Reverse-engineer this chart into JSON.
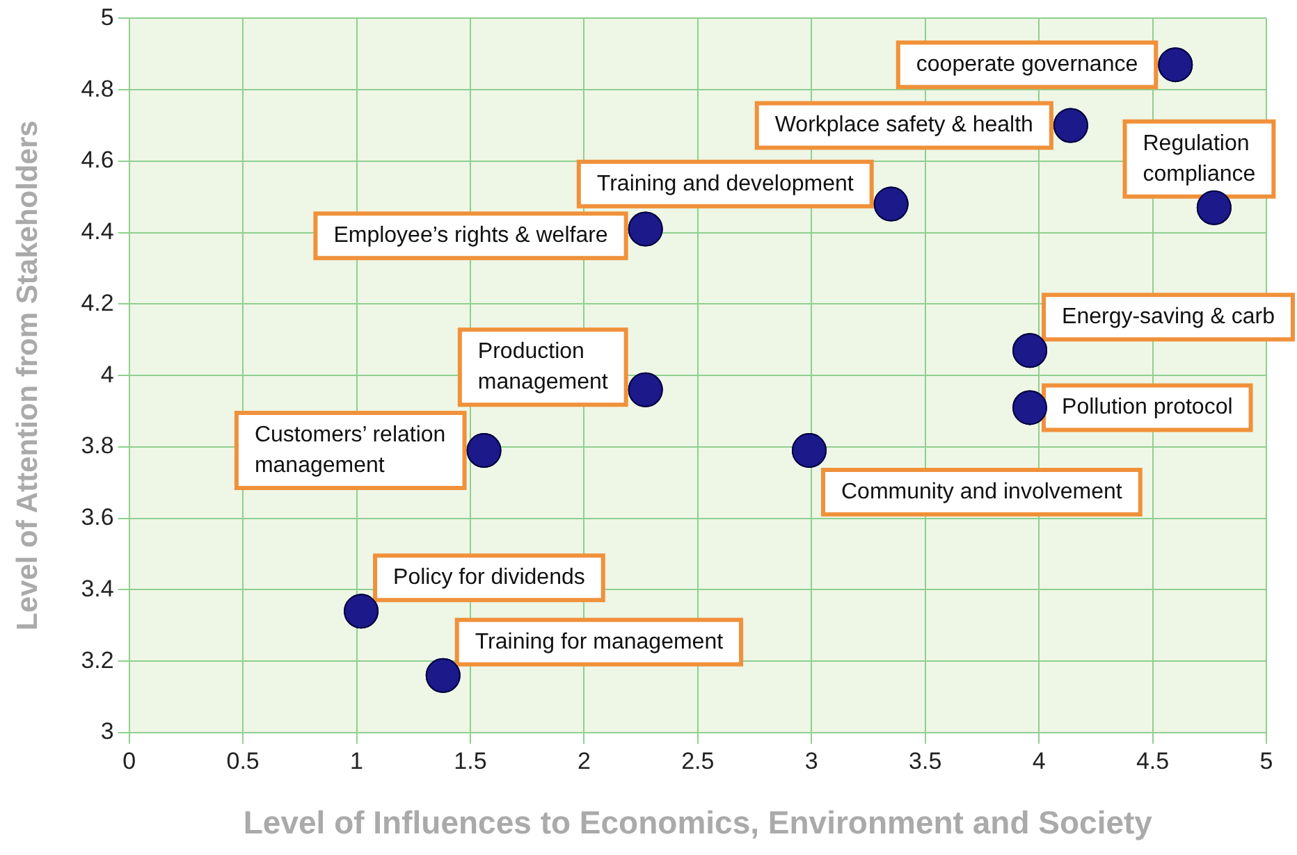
{
  "chart_data": {
    "type": "scatter",
    "xlabel": "Level of Influences to Economics, Environment and Society",
    "ylabel": "Level of Attention from Stakeholders",
    "x": [
      4.6,
      4.14,
      4.77,
      3.35,
      2.27,
      3.96,
      3.96,
      2.27,
      1.56,
      2.99,
      1.02,
      1.38
    ],
    "series": [
      {
        "color": "#1c1a8a",
        "values": [
          4.87,
          4.7,
          4.47,
          4.48,
          4.41,
          4.07,
          3.91,
          3.96,
          3.79,
          3.79,
          3.34,
          3.16
        ]
      }
    ],
    "xlim": [
      0,
      5
    ],
    "xticks": [
      0,
      0.5,
      1,
      1.5,
      2,
      2.5,
      3,
      3.5,
      4,
      4.5,
      5
    ],
    "ylim": [
      3,
      5
    ],
    "yticks": [
      3,
      3.2,
      3.4,
      3.6,
      3.8,
      4,
      4.2,
      4.4,
      4.6,
      4.8,
      5
    ],
    "grid": true,
    "legend": false,
    "marker": "circle",
    "annotations": [
      {
        "text": "cooperate governance",
        "x": 4.6,
        "y": 4.87
      },
      {
        "text": "Workplace safety & health",
        "x": 4.14,
        "y": 4.7
      },
      {
        "text": "Regulation compliance",
        "x": 4.77,
        "y": 4.47
      },
      {
        "text": "Training and development",
        "x": 3.35,
        "y": 4.48
      },
      {
        "text": "Employee’s rights & welfare",
        "x": 2.27,
        "y": 4.41
      },
      {
        "text": "Energy-saving & carb",
        "x": 3.96,
        "y": 4.07
      },
      {
        "text": "Pollution protocol",
        "x": 3.96,
        "y": 3.91
      },
      {
        "text": "Production management",
        "x": 2.27,
        "y": 3.96
      },
      {
        "text": "Customers’ relation management",
        "x": 1.56,
        "y": 3.79
      },
      {
        "text": "Community and involvement",
        "x": 2.99,
        "y": 3.79
      },
      {
        "text": "Policy for dividends",
        "x": 1.02,
        "y": 3.34
      },
      {
        "text": "Training for management",
        "x": 1.38,
        "y": 3.16
      }
    ]
  }
}
